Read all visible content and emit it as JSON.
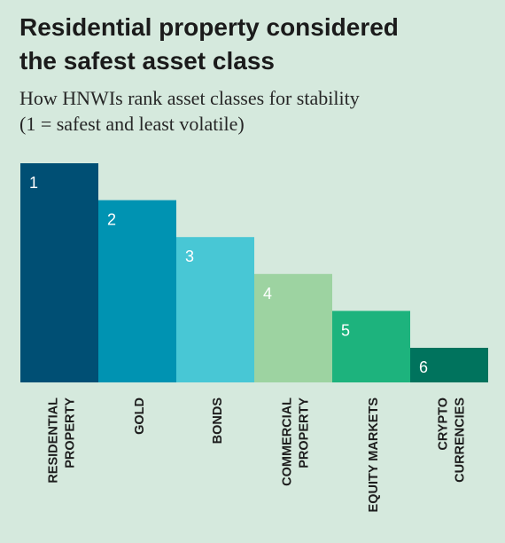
{
  "chart_data": {
    "type": "bar",
    "title": "Residential property considered\nthe safest asset class",
    "subtitle": "How HNWIs rank asset classes for stability\n (1 = safest and least volatile)",
    "categories": [
      [
        "RESIDENTIAL",
        "PROPERTY"
      ],
      [
        "GOLD"
      ],
      [
        "BONDS"
      ],
      [
        "COMMERCIAL",
        "PROPERTY"
      ],
      [
        "EQUITY MARKETS"
      ],
      [
        "CRYPTO",
        "CURRENCIES"
      ]
    ],
    "ranks": [
      1,
      2,
      3,
      4,
      5,
      6
    ],
    "data_labels": [
      "1",
      "2",
      "3",
      "4",
      "5",
      "6"
    ],
    "colors": [
      "#004f74",
      "#0093b2",
      "#48c7d5",
      "#9dd3a1",
      "#1db37d",
      "#00735d"
    ],
    "label_color": "#ffffff",
    "xlabel": "",
    "ylabel": ""
  }
}
